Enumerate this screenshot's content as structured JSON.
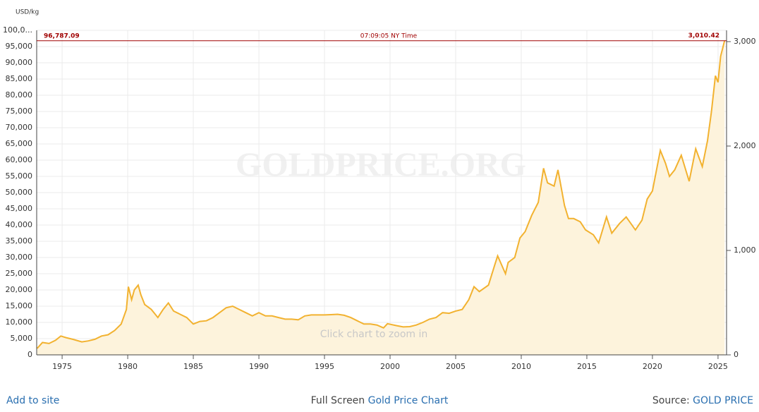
{
  "chart_data": {
    "type": "line",
    "ylabel": "USD/kg",
    "watermark": "GOLDPRICE.ORG",
    "hint": "Click chart to zoom in",
    "time_label": "07:09:05 NY Time",
    "current": {
      "value": 96787.09,
      "label": "96,787.09"
    },
    "current_y2": {
      "value": 3010.42,
      "label": "3,010.42"
    },
    "color": "#f2b230",
    "fill": "#fdf3dc",
    "x": [
      1973.1,
      1973.5,
      1974.0,
      1974.5,
      1974.9,
      1975.3,
      1975.8,
      1976.5,
      1977.0,
      1977.5,
      1978.0,
      1978.5,
      1979.0,
      1979.5,
      1979.9,
      1980.05,
      1980.3,
      1980.5,
      1980.8,
      1981.0,
      1981.3,
      1981.8,
      1982.3,
      1982.7,
      1983.1,
      1983.5,
      1984.0,
      1984.5,
      1985.0,
      1985.5,
      1986.0,
      1986.5,
      1987.0,
      1987.5,
      1988.0,
      1988.5,
      1989.0,
      1989.5,
      1990.0,
      1990.5,
      1991.0,
      1991.5,
      1992.0,
      1992.5,
      1993.0,
      1993.5,
      1994.0,
      1994.5,
      1995.0,
      1995.5,
      1996.0,
      1996.5,
      1997.0,
      1997.5,
      1998.0,
      1998.5,
      1999.0,
      1999.5,
      1999.8,
      2000.5,
      2001.0,
      2001.5,
      2002.0,
      2002.5,
      2003.0,
      2003.5,
      2004.0,
      2004.5,
      2005.0,
      2005.5,
      2006.0,
      2006.4,
      2006.8,
      2007.5,
      2008.0,
      2008.2,
      2008.8,
      2009.0,
      2009.5,
      2009.9,
      2010.3,
      2010.8,
      2011.3,
      2011.7,
      2012.0,
      2012.5,
      2012.8,
      2013.3,
      2013.6,
      2014.0,
      2014.5,
      2014.9,
      2015.5,
      2015.9,
      2016.5,
      2016.9,
      2017.5,
      2018.0,
      2018.7,
      2019.2,
      2019.6,
      2020.0,
      2020.6,
      2021.0,
      2021.3,
      2021.7,
      2022.2,
      2022.8,
      2023.3,
      2023.8,
      2024.2,
      2024.5,
      2024.8,
      2025.0,
      2025.2,
      2025.5
    ],
    "values": [
      2000,
      3800,
      3500,
      4500,
      5800,
      5300,
      4800,
      4000,
      4300,
      4800,
      5800,
      6200,
      7500,
      9500,
      14000,
      21000,
      17000,
      20000,
      21500,
      18500,
      15500,
      14000,
      11500,
      14000,
      16000,
      13500,
      12500,
      11500,
      9500,
      10300,
      10500,
      11500,
      13000,
      14500,
      15000,
      14000,
      13000,
      12000,
      13000,
      12000,
      12000,
      11500,
      11000,
      11000,
      10800,
      12000,
      12300,
      12300,
      12300,
      12400,
      12500,
      12200,
      11500,
      10500,
      9500,
      9500,
      9200,
      8300,
      9600,
      9000,
      8600,
      8700,
      9200,
      10000,
      11000,
      11500,
      13000,
      12800,
      13500,
      14000,
      17000,
      21000,
      19500,
      21500,
      28000,
      30500,
      25000,
      28500,
      30000,
      36000,
      38000,
      43000,
      47000,
      57500,
      53000,
      52000,
      57000,
      46000,
      42000,
      42000,
      41000,
      38500,
      37000,
      34500,
      42500,
      37500,
      40500,
      42500,
      38500,
      41500,
      48000,
      50500,
      63000,
      59000,
      55000,
      57000,
      61500,
      53500,
      63500,
      58000,
      66000,
      75000,
      86000,
      84000,
      92000,
      96787
    ],
    "xlim": [
      1973.06,
      2025.65
    ],
    "xticks": [
      1975,
      1980,
      1985,
      1990,
      1995,
      2000,
      2005,
      2010,
      2015,
      2020,
      2025
    ],
    "ylim": [
      0,
      100000
    ],
    "yticks": [
      0,
      {
        "value": 5000,
        "label": "5,000"
      },
      {
        "value": 10000,
        "label": "10,000"
      },
      {
        "value": 15000,
        "label": "15,000"
      },
      {
        "value": 20000,
        "label": "20,000"
      },
      {
        "value": 25000,
        "label": "25,000"
      },
      {
        "value": 30000,
        "label": "30,000"
      },
      {
        "value": 35000,
        "label": "35,000"
      },
      {
        "value": 40000,
        "label": "40,000"
      },
      {
        "value": 45000,
        "label": "45,000"
      },
      {
        "value": 50000,
        "label": "50,000"
      },
      {
        "value": 55000,
        "label": "55,000"
      },
      {
        "value": 60000,
        "label": "60,000"
      },
      {
        "value": 65000,
        "label": "65,000"
      },
      {
        "value": 70000,
        "label": "70,000"
      },
      {
        "value": 75000,
        "label": "75,000"
      },
      {
        "value": 80000,
        "label": "80,000"
      },
      {
        "value": 85000,
        "label": "85,000"
      },
      {
        "value": 90000,
        "label": "90,000"
      },
      {
        "value": 95000,
        "label": "95,000"
      },
      {
        "value": 100000,
        "label": "100,0..."
      }
    ],
    "y2lim": [
      0,
      3108
    ],
    "y2ticks": [
      0,
      {
        "value": 1000,
        "label": "1,000"
      },
      {
        "value": 2000,
        "label": "2,000"
      },
      {
        "value": 3000,
        "label": "3,000"
      }
    ],
    "grid": true
  },
  "footer": {
    "add": "Add to site",
    "full": "Full Screen",
    "chart_link": "Gold Price Chart",
    "source": "Source:",
    "source_link": "GOLD PRICE"
  }
}
